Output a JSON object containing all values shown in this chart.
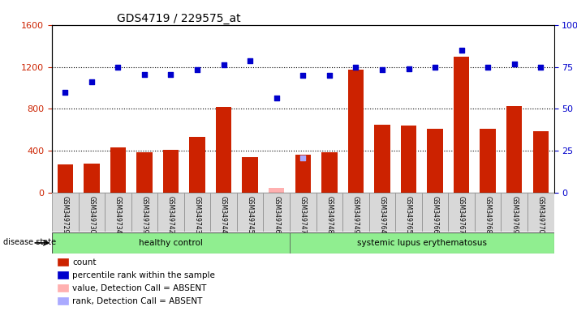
{
  "title": "GDS4719 / 229575_at",
  "samples": [
    "GSM349729",
    "GSM349730",
    "GSM349734",
    "GSM349739",
    "GSM349742",
    "GSM349743",
    "GSM349744",
    "GSM349745",
    "GSM349746",
    "GSM349747",
    "GSM349748",
    "GSM349749",
    "GSM349764",
    "GSM349765",
    "GSM349766",
    "GSM349767",
    "GSM349768",
    "GSM349769",
    "GSM349770"
  ],
  "count_values": [
    270,
    280,
    430,
    390,
    410,
    530,
    820,
    340,
    null,
    360,
    390,
    1170,
    650,
    640,
    610,
    1300,
    610,
    830,
    590
  ],
  "count_absent": [
    null,
    null,
    null,
    null,
    null,
    null,
    null,
    null,
    50,
    null,
    null,
    null,
    null,
    null,
    null,
    null,
    null,
    null,
    null
  ],
  "rank_values": [
    960,
    1060,
    1200,
    1130,
    1130,
    1170,
    1220,
    1260,
    900,
    1120,
    1120,
    1200,
    1170,
    1180,
    1200,
    1360,
    1200,
    1230,
    1200
  ],
  "rank_absent": [
    null,
    null,
    null,
    null,
    null,
    null,
    null,
    null,
    null,
    335,
    null,
    null,
    null,
    null,
    null,
    null,
    null,
    null,
    null
  ],
  "healthy_count": 9,
  "groups": {
    "healthy": "healthy control",
    "lupus": "systemic lupus erythematosus"
  },
  "ylim_left": [
    0,
    1600
  ],
  "ylim_right": [
    0,
    100
  ],
  "yticks_left": [
    0,
    400,
    800,
    1200,
    1600
  ],
  "yticks_right": [
    0,
    25,
    50,
    75,
    100
  ],
  "bar_color": "#cc2200",
  "bar_absent_color": "#ffb0b0",
  "rank_color": "#0000cc",
  "rank_absent_color": "#aaaaff",
  "bg_color": "#ffffff",
  "label_color_left": "#cc2200",
  "label_color_right": "#0000cc",
  "legend_items": [
    {
      "label": "count",
      "color": "#cc2200"
    },
    {
      "label": "percentile rank within the sample",
      "color": "#0000cc"
    },
    {
      "label": "value, Detection Call = ABSENT",
      "color": "#ffb0b0"
    },
    {
      "label": "rank, Detection Call = ABSENT",
      "color": "#aaaaff"
    }
  ],
  "disease_state_label": "disease state",
  "group_bg": "#90ee90"
}
